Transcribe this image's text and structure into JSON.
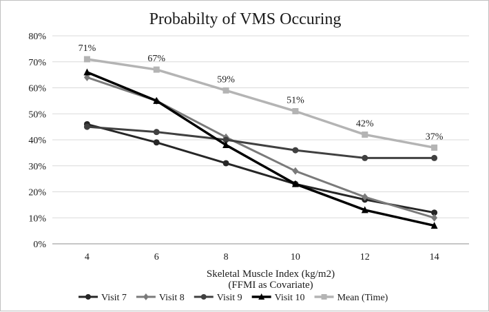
{
  "chart_data": {
    "type": "line",
    "title": "Probabilty of VMS Occuring",
    "xlabel": [
      "Skeletal Muscle Index (kg/m2)",
      "(FFMI as Covariate)"
    ],
    "ylabel": "",
    "x": [
      4,
      6,
      8,
      10,
      12,
      14
    ],
    "x_tick_labels": [
      "4",
      "6",
      "8",
      "10",
      "12",
      "14"
    ],
    "ylim": [
      0,
      0.8
    ],
    "y_tick_labels": [
      "0%",
      "10%",
      "20%",
      "30%",
      "40%",
      "50%",
      "60%",
      "70%",
      "80%"
    ],
    "grid": "horizontal",
    "legend_position": "bottom",
    "series": [
      {
        "name": "Visit 7",
        "values": [
          0.46,
          0.39,
          0.31,
          0.23,
          0.17,
          0.12
        ],
        "color": "#262626",
        "marker": "circle",
        "width": 3
      },
      {
        "name": "Visit 8",
        "values": [
          0.64,
          0.55,
          0.41,
          0.28,
          0.18,
          0.1
        ],
        "color": "#7a7a7a",
        "marker": "diamond",
        "width": 3
      },
      {
        "name": "Visit 9",
        "values": [
          0.45,
          0.43,
          0.4,
          0.36,
          0.33,
          0.33
        ],
        "color": "#404040",
        "marker": "circle",
        "width": 3
      },
      {
        "name": "Visit 10",
        "values": [
          0.66,
          0.55,
          0.38,
          0.23,
          0.13,
          0.07
        ],
        "color": "#000000",
        "marker": "triangle",
        "width": 3.5
      },
      {
        "name": "Mean (Time)",
        "values": [
          0.71,
          0.67,
          0.59,
          0.51,
          0.42,
          0.37
        ],
        "color": "#b4b4b4",
        "marker": "square",
        "width": 3.5
      }
    ],
    "annotations": {
      "series": "Mean (Time)",
      "labels": [
        "71%",
        "67%",
        "59%",
        "51%",
        "42%",
        "37%"
      ]
    }
  }
}
